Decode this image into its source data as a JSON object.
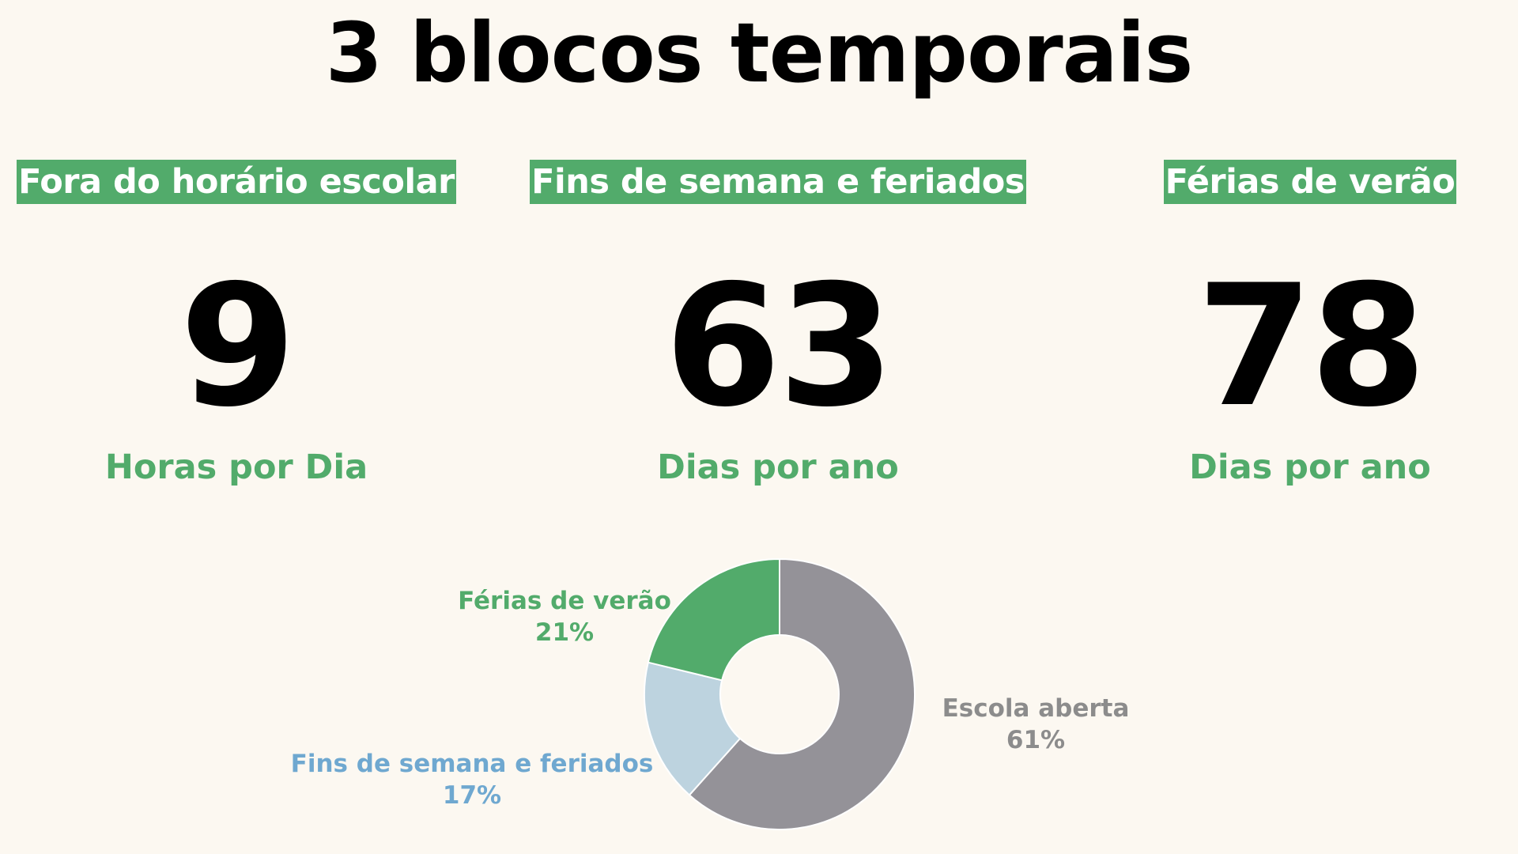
{
  "title": "3 blocos temporais",
  "blocks": [
    {
      "label": "Fora do horário escolar",
      "value": "9",
      "unit": "Horas por Dia"
    },
    {
      "label": "Fins de semana e feriados",
      "value": "63",
      "unit": "Dias por ano"
    },
    {
      "label": "Férias de verão",
      "value": "78",
      "unit": "Dias por ano"
    }
  ],
  "colors": {
    "background": "#fcf8f1",
    "accent_green": "#52ab6b",
    "grey": "#949298",
    "light_blue": "#bdd3df",
    "blue_text": "#6fa8d0",
    "grey_text": "#8c8c8c"
  },
  "chart_data": {
    "type": "pie",
    "donut": true,
    "slices": [
      {
        "name": "Escola aberta",
        "value": 61,
        "label": "61%",
        "color": "#949298",
        "text_color": "#8c8c8c"
      },
      {
        "name": "Fins de semana e feriados",
        "value": 17,
        "label": "17%",
        "color": "#bdd3df",
        "text_color": "#6fa8d0"
      },
      {
        "name": "Férias de verão",
        "value": 21,
        "label": "21%",
        "color": "#52ab6b",
        "text_color": "#52ab6b"
      }
    ]
  }
}
